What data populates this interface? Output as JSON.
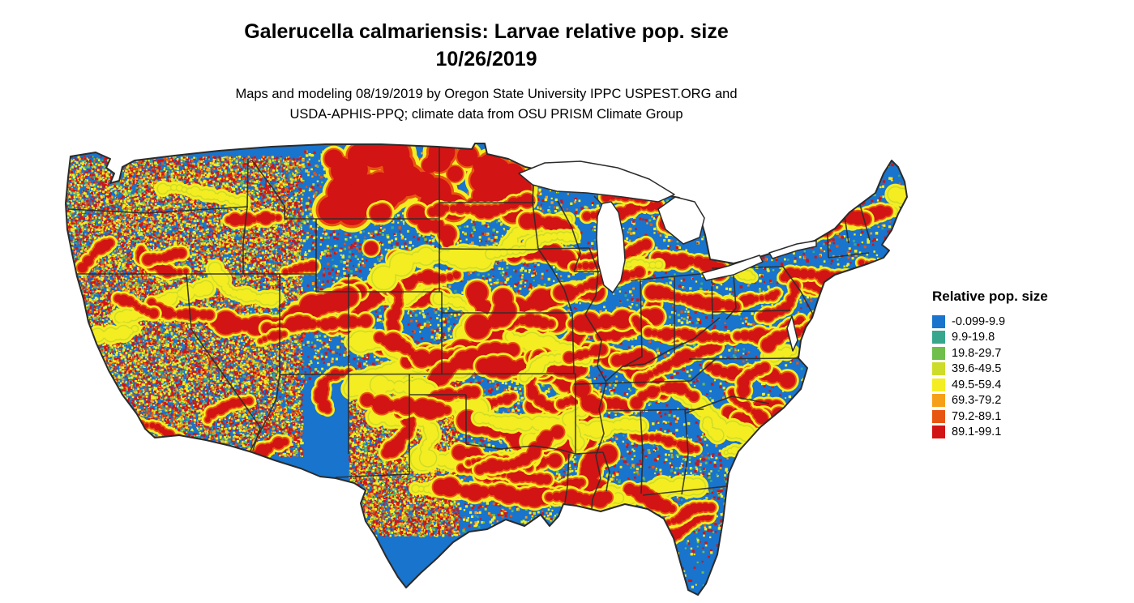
{
  "title": {
    "line1": "Galerucella calmariensis: Larvae relative pop. size",
    "line2": "10/26/2019"
  },
  "subtitle": {
    "line1": "Maps and modeling 08/19/2019 by Oregon State University IPPC USPEST.ORG and",
    "line2": "USDA-APHIS-PPQ; climate data from OSU PRISM Climate Group"
  },
  "map": {
    "water_color": "#ffffff",
    "boundary_color": "#2b2b2b"
  },
  "legend": {
    "title": "Relative pop. size",
    "items": [
      {
        "label": "-0.099-9.9",
        "color": "#1874cd"
      },
      {
        "label": "9.9-19.8",
        "color": "#38a68c"
      },
      {
        "label": "19.8-29.7",
        "color": "#6fbf4a"
      },
      {
        "label": "39.6-49.5",
        "color": "#cddc29"
      },
      {
        "label": "49.5-59.4",
        "color": "#f4ed22"
      },
      {
        "label": "69.3-79.2",
        "color": "#f6a019"
      },
      {
        "label": "79.2-89.1",
        "color": "#e85510"
      },
      {
        "label": "89.1-99.1",
        "color": "#d21414"
      }
    ]
  }
}
